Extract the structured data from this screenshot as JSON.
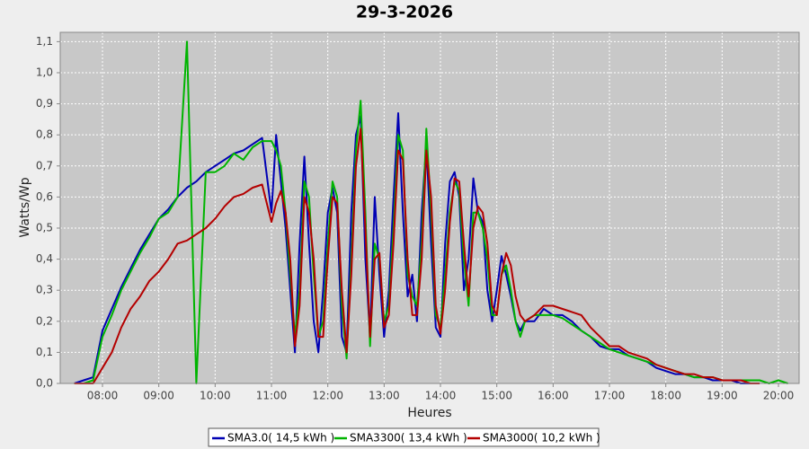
{
  "chart_data": {
    "type": "line",
    "title": "29-3-2026",
    "x_label": "Heures",
    "y_label": "Watts/Wp",
    "grid": true,
    "legend": "bottom",
    "xlim": [
      "07:15",
      "20:22"
    ],
    "xticks": [
      "08:00",
      "09:00",
      "10:00",
      "11:00",
      "12:00",
      "13:00",
      "14:00",
      "15:00",
      "16:00",
      "17:00",
      "18:00",
      "19:00",
      "20:00"
    ],
    "ylim": [
      0,
      1.13
    ],
    "yticks": [
      {
        "value": 0,
        "label": "0,0"
      },
      {
        "value": 0.1,
        "label": "0,1"
      },
      {
        "value": 0.2,
        "label": "0,2"
      },
      {
        "value": 0.3,
        "label": "0,3"
      },
      {
        "value": 0.4,
        "label": "0,4"
      },
      {
        "value": 0.5,
        "label": "0,5"
      },
      {
        "value": 0.6,
        "label": "0,6"
      },
      {
        "value": 0.7,
        "label": "0,7"
      },
      {
        "value": 0.8,
        "label": "0,8"
      },
      {
        "value": 0.9,
        "label": "0,9"
      },
      {
        "value": 1.0,
        "label": "1,0"
      },
      {
        "value": 1.1,
        "label": "1,1"
      }
    ],
    "x": [
      "07:30",
      "07:40",
      "07:50",
      "08:00",
      "08:10",
      "08:20",
      "08:30",
      "08:40",
      "08:50",
      "09:00",
      "09:10",
      "09:20",
      "09:30",
      "09:40",
      "09:50",
      "10:00",
      "10:10",
      "10:20",
      "10:30",
      "10:40",
      "10:50",
      "11:00",
      "11:05",
      "11:10",
      "11:15",
      "11:20",
      "11:25",
      "11:30",
      "11:35",
      "11:40",
      "11:45",
      "11:50",
      "11:55",
      "12:00",
      "12:05",
      "12:10",
      "12:15",
      "12:20",
      "12:25",
      "12:30",
      "12:35",
      "12:40",
      "12:45",
      "12:50",
      "12:55",
      "13:00",
      "13:05",
      "13:10",
      "13:15",
      "13:20",
      "13:25",
      "13:30",
      "13:35",
      "13:40",
      "13:45",
      "13:50",
      "13:55",
      "14:00",
      "14:05",
      "14:10",
      "14:15",
      "14:20",
      "14:25",
      "14:30",
      "14:35",
      "14:40",
      "14:45",
      "14:50",
      "14:55",
      "15:00",
      "15:05",
      "15:10",
      "15:15",
      "15:20",
      "15:25",
      "15:30",
      "15:40",
      "15:50",
      "16:00",
      "16:10",
      "16:20",
      "16:30",
      "16:40",
      "16:50",
      "17:00",
      "17:10",
      "17:20",
      "17:30",
      "17:40",
      "17:50",
      "18:00",
      "18:10",
      "18:20",
      "18:30",
      "18:40",
      "18:50",
      "19:00",
      "19:10",
      "19:20",
      "19:30",
      "19:40",
      "19:50",
      "20:00",
      "20:10"
    ],
    "series": [
      {
        "name": "SMA3.0( 14,5 kWh )",
        "color": "#0000b4",
        "values": [
          0,
          0.01,
          0.02,
          0.17,
          0.24,
          0.31,
          0.37,
          0.43,
          0.48,
          0.53,
          0.56,
          0.6,
          0.63,
          0.65,
          0.68,
          0.7,
          0.72,
          0.74,
          0.75,
          0.77,
          0.79,
          0.55,
          0.8,
          0.65,
          0.5,
          0.3,
          0.1,
          0.45,
          0.73,
          0.45,
          0.2,
          0.1,
          0.3,
          0.55,
          0.63,
          0.55,
          0.15,
          0.1,
          0.55,
          0.8,
          0.86,
          0.4,
          0.15,
          0.6,
          0.35,
          0.15,
          0.3,
          0.6,
          0.87,
          0.55,
          0.28,
          0.35,
          0.2,
          0.55,
          0.77,
          0.45,
          0.18,
          0.15,
          0.45,
          0.65,
          0.68,
          0.6,
          0.3,
          0.4,
          0.66,
          0.55,
          0.52,
          0.3,
          0.2,
          0.3,
          0.41,
          0.35,
          0.28,
          0.2,
          0.17,
          0.2,
          0.2,
          0.24,
          0.22,
          0.22,
          0.2,
          0.17,
          0.15,
          0.12,
          0.11,
          0.11,
          0.09,
          0.08,
          0.07,
          0.05,
          0.04,
          0.03,
          0.03,
          0.02,
          0.02,
          0.01,
          0.01,
          0.01,
          0,
          0,
          null,
          null,
          null,
          null
        ]
      },
      {
        "name": "SMA3300( 13,4 kWh )",
        "color": "#00b400",
        "values": [
          0,
          0,
          0.01,
          0.15,
          0.22,
          0.3,
          0.36,
          0.42,
          0.47,
          0.53,
          0.55,
          0.6,
          1.1,
          0,
          0.68,
          0.68,
          0.7,
          0.74,
          0.72,
          0.76,
          0.78,
          0.78,
          0.75,
          0.7,
          0.55,
          0.35,
          0.15,
          0.3,
          0.65,
          0.6,
          0.35,
          0.15,
          0.2,
          0.45,
          0.65,
          0.6,
          0.25,
          0.08,
          0.4,
          0.75,
          0.91,
          0.55,
          0.12,
          0.45,
          0.4,
          0.2,
          0.25,
          0.5,
          0.8,
          0.75,
          0.35,
          0.28,
          0.25,
          0.45,
          0.82,
          0.55,
          0.22,
          0.18,
          0.35,
          0.55,
          0.65,
          0.62,
          0.4,
          0.25,
          0.55,
          0.55,
          0.5,
          0.4,
          0.22,
          0.22,
          0.35,
          0.38,
          0.3,
          0.2,
          0.15,
          0.2,
          0.22,
          0.22,
          0.22,
          0.21,
          0.19,
          0.17,
          0.15,
          0.13,
          0.11,
          0.1,
          0.09,
          0.08,
          0.07,
          0.06,
          0.05,
          0.04,
          0.03,
          0.02,
          0.02,
          0.02,
          0.01,
          0.01,
          0.01,
          0.01,
          0.01,
          0,
          0.01,
          0
        ]
      },
      {
        "name": "SMA3000( 10,2 kWh )",
        "color": "#b40000",
        "values": [
          0,
          0,
          0,
          0.05,
          0.1,
          0.18,
          0.24,
          0.28,
          0.33,
          0.36,
          0.4,
          0.45,
          0.46,
          0.48,
          0.5,
          0.53,
          0.57,
          0.6,
          0.61,
          0.63,
          0.64,
          0.52,
          0.58,
          0.62,
          0.55,
          0.4,
          0.12,
          0.25,
          0.6,
          0.55,
          0.4,
          0.15,
          0.15,
          0.4,
          0.6,
          0.58,
          0.3,
          0.1,
          0.35,
          0.7,
          0.82,
          0.5,
          0.15,
          0.4,
          0.42,
          0.18,
          0.22,
          0.45,
          0.75,
          0.72,
          0.4,
          0.22,
          0.22,
          0.4,
          0.75,
          0.6,
          0.25,
          0.16,
          0.3,
          0.52,
          0.66,
          0.65,
          0.45,
          0.28,
          0.5,
          0.57,
          0.55,
          0.45,
          0.25,
          0.22,
          0.35,
          0.42,
          0.38,
          0.28,
          0.22,
          0.2,
          0.22,
          0.25,
          0.25,
          0.24,
          0.23,
          0.22,
          0.18,
          0.15,
          0.12,
          0.12,
          0.1,
          0.09,
          0.08,
          0.06,
          0.05,
          0.04,
          0.03,
          0.03,
          0.02,
          0.02,
          0.01,
          0.01,
          0.01,
          0,
          0,
          null,
          null,
          null
        ]
      }
    ]
  }
}
